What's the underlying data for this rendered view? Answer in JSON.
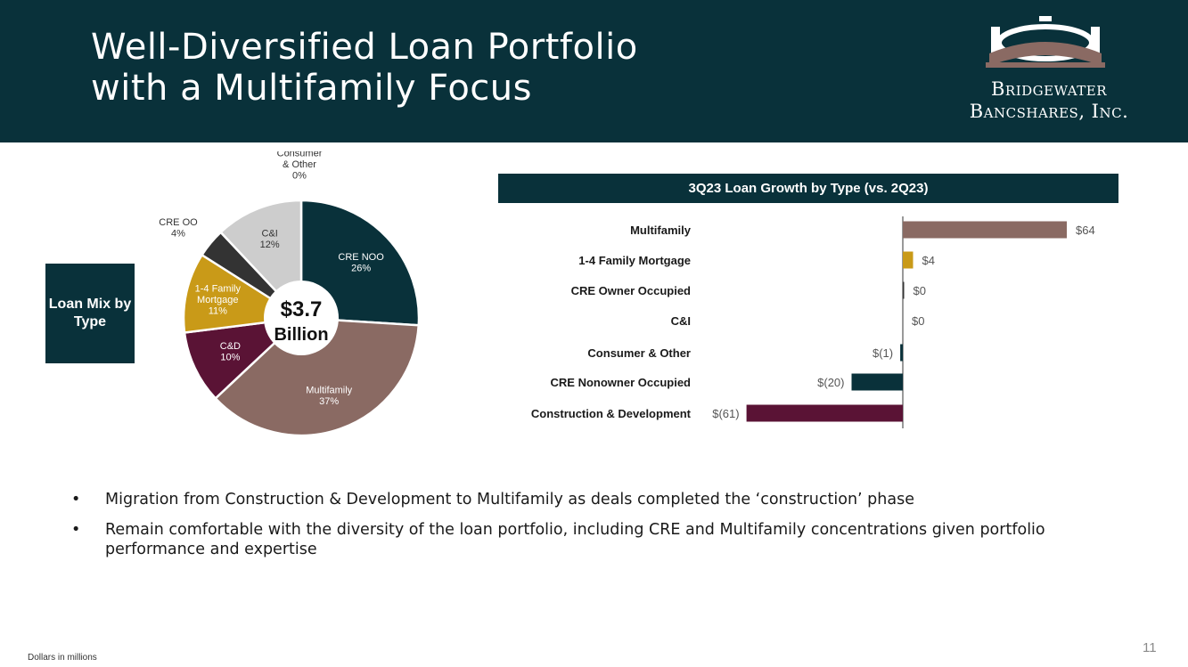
{
  "header": {
    "title_line1": "Well-Diversified Loan Portfolio",
    "title_line2": "with a Multifamily Focus",
    "logo_line1": "Bridgewater",
    "logo_line2": "Bancshares, Inc."
  },
  "loan_mix_label": "Loan Mix by Type",
  "bullets": [
    "Migration from Construction & Development to Multifamily as deals completed the ‘construction’ phase",
    "Remain comfortable with the diversity of the loan portfolio, including CRE and Multifamily concentrations given portfolio performance and expertise"
  ],
  "footnote": "Dollars in millions",
  "page_number": "11",
  "colors": {
    "navy": "#09313a",
    "mauve": "#8a6a63",
    "gold": "#c99a18",
    "maroon": "#5a1335",
    "charcoal": "#333333",
    "light_gray": "#cdcdcd"
  },
  "chart_data": [
    {
      "type": "pie",
      "style": "donut",
      "center_value": "$3.7",
      "center_label": "Billion",
      "slices": [
        {
          "label": "CRE NOO",
          "pct_label": "26%",
          "value": 26,
          "color": "#09313a",
          "text_color": "#ffffff"
        },
        {
          "label": "Multifamily",
          "pct_label": "37%",
          "value": 37,
          "color": "#8a6a63",
          "text_color": "#ffffff"
        },
        {
          "label": "C&D",
          "pct_label": "10%",
          "value": 10,
          "color": "#5a1335",
          "text_color": "#ffffff"
        },
        {
          "label": "1-4 Family Mortgage",
          "pct_label": "11%",
          "value": 11,
          "color": "#c99a18",
          "text_color": "#ffffff"
        },
        {
          "label": "CRE OO",
          "pct_label": "4%",
          "value": 4,
          "color": "#333333",
          "text_color": "#333333"
        },
        {
          "label": "C&I",
          "pct_label": "12%",
          "value": 12,
          "color": "#cdcdcd",
          "text_color": "#333333"
        },
        {
          "label": "Consumer & Other",
          "pct_label": "0%",
          "value": 0,
          "color": "#09313a",
          "text_color": "#333333"
        }
      ]
    },
    {
      "type": "bar",
      "orientation": "horizontal",
      "title": "3Q23 Loan Growth by Type (vs. 2Q23)",
      "categories": [
        "Multifamily",
        "1-4 Family Mortgage",
        "CRE Owner Occupied",
        "C&I",
        "Consumer & Other",
        "CRE Nonowner Occupied",
        "Construction & Development"
      ],
      "values": [
        64,
        4,
        0,
        0,
        -1,
        -20,
        -61
      ],
      "value_labels": [
        "$64",
        "$4",
        "$0",
        "$0",
        "$(1)",
        "$(20)",
        "$(61)"
      ],
      "colors": [
        "#8a6a63",
        "#c99a18",
        "#333333",
        "#cdcdcd",
        "#09313a",
        "#09313a",
        "#5a1335"
      ],
      "xlim": [
        -61,
        64
      ]
    }
  ]
}
